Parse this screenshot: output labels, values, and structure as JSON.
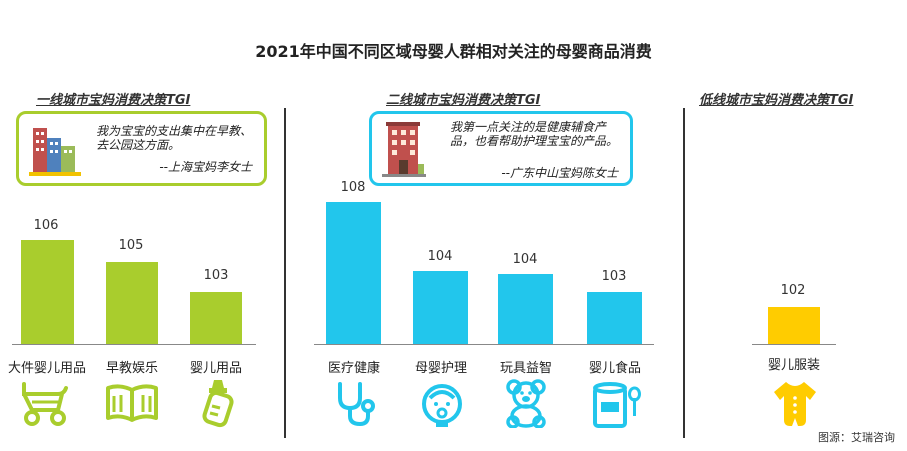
{
  "title": "2021年中国不同区域母婴人群相对关注的母婴商品消费",
  "source": "图源：艾瑞咨询",
  "colors": {
    "green": "#a9cd2d",
    "blue": "#22c6ec",
    "yellow": "#ffcc00"
  },
  "sections": [
    {
      "title": "一线城市宝妈消费决策TGI",
      "quote": {
        "text": "我为宝宝的支出集中在早教、去公园这方面。",
        "signature": "--上海宝妈李女士"
      }
    },
    {
      "title": "二线城市宝妈消费决策TGI",
      "quote": {
        "text": "我第一点关注的是健康辅食产品，也看帮助护理宝宝的产品。",
        "signature": "--广东中山宝妈陈女士"
      }
    },
    {
      "title": "低线城市宝妈消费决策TGI"
    }
  ],
  "chart_data": [
    {
      "type": "bar",
      "title": "一线城市宝妈消费决策TGI",
      "categories": [
        "大件婴儿用品",
        "早教娱乐",
        "婴儿用品"
      ],
      "values": [
        106,
        105,
        103
      ],
      "color": "#a9cd2d"
    },
    {
      "type": "bar",
      "title": "二线城市宝妈消费决策TGI",
      "categories": [
        "医疗健康",
        "母婴护理",
        "玩具益智",
        "婴儿食品"
      ],
      "values": [
        108,
        104,
        104,
        103
      ],
      "color": "#22c6ec"
    },
    {
      "type": "bar",
      "title": "低线城市宝妈消费决策TGI",
      "categories": [
        "婴儿服装"
      ],
      "values": [
        102
      ],
      "color": "#ffcc00"
    }
  ],
  "icons": [
    "stroller-icon",
    "book-icon",
    "baby-bottle-icon",
    "stethoscope-icon",
    "baby-face-icon",
    "teddy-bear-icon",
    "formula-can-icon",
    "baby-onesie-icon"
  ]
}
